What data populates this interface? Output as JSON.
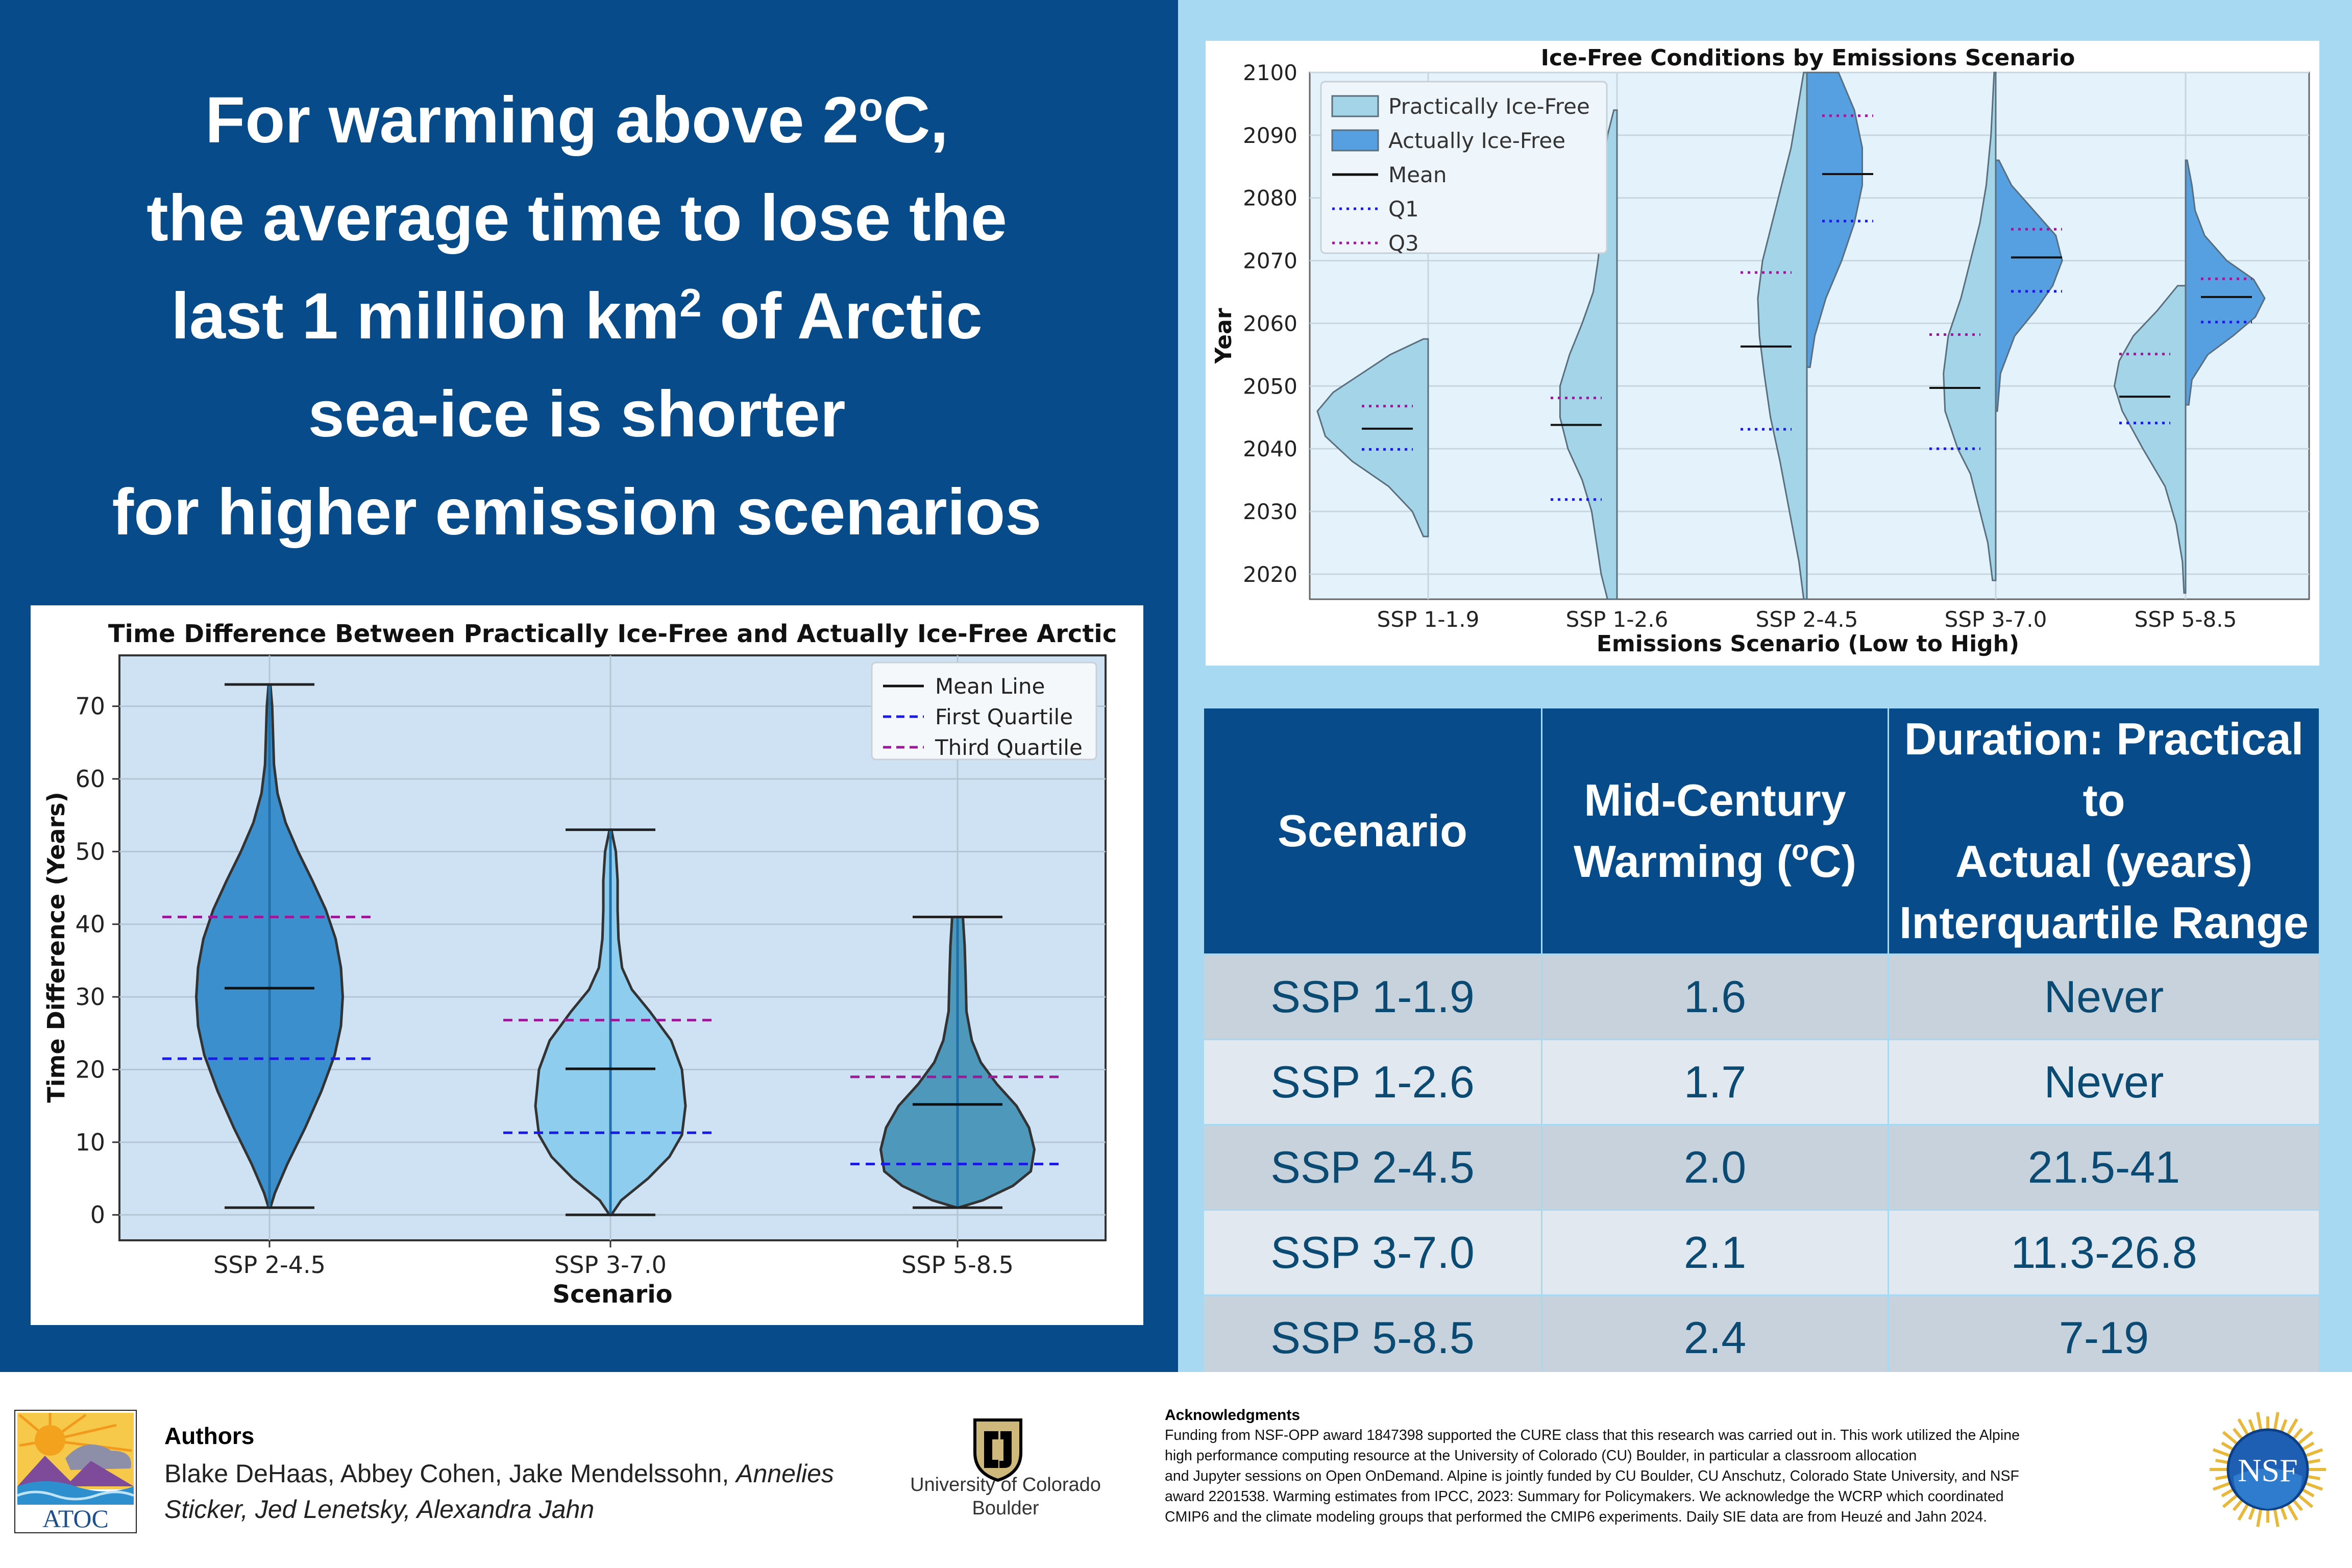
{
  "headline": {
    "line1_prefix": "For warming above 2",
    "line1_sup": "o",
    "line1_suffix": "C,",
    "line2": "the average time to lose the",
    "line3_prefix": "last 1 million km",
    "line3_sup": "2",
    "line3_suffix": " of Arctic",
    "line4": "sea-ice is shorter",
    "line5": "for higher emission scenarios"
  },
  "colors": {
    "left_panel": "#074b8a",
    "right_panel": "#a7d9f2",
    "table_header": "#074b8a",
    "table_row_dark": "#c8d2dc",
    "table_row_light": "#e1e8ef",
    "table_text": "#0b4a72"
  },
  "chart_data": [
    {
      "type": "violin",
      "title": "Time Difference Between Practically Ice-Free and Actually Ice-Free Arctic",
      "xlabel": "Scenario",
      "ylabel": "Time Difference (Years)",
      "ylim": [
        -3.5,
        77
      ],
      "yticks": [
        0,
        10,
        20,
        30,
        40,
        50,
        60,
        70
      ],
      "grid": true,
      "legend": {
        "position": "top-right",
        "entries": [
          "Mean Line",
          "First Quartile",
          "Third Quartile"
        ]
      },
      "categories": [
        "SSP 2-4.5",
        "SSP 3-7.0",
        "SSP 5-8.5"
      ],
      "series": [
        {
          "name": "SSP 2-4.5",
          "color": "#3a8fcc",
          "min": 1,
          "max": 73,
          "mean": 31.2,
          "q1": 21.5,
          "q3": 41,
          "profile": [
            [
              1,
              0.01
            ],
            [
              3,
              0.06
            ],
            [
              7,
              0.2
            ],
            [
              12,
              0.4
            ],
            [
              17,
              0.58
            ],
            [
              22,
              0.73
            ],
            [
              26,
              0.8
            ],
            [
              30,
              0.82
            ],
            [
              34,
              0.8
            ],
            [
              38,
              0.74
            ],
            [
              42,
              0.63
            ],
            [
              46,
              0.48
            ],
            [
              50,
              0.32
            ],
            [
              54,
              0.18
            ],
            [
              58,
              0.09
            ],
            [
              62,
              0.05
            ],
            [
              66,
              0.04
            ],
            [
              70,
              0.03
            ],
            [
              73,
              0.01
            ]
          ]
        },
        {
          "name": "SSP 3-7.0",
          "color": "#8fcdee",
          "min": 0,
          "max": 53,
          "mean": 20.1,
          "q1": 11.3,
          "q3": 26.8,
          "profile": [
            [
              0,
              0.01
            ],
            [
              2,
              0.12
            ],
            [
              5,
              0.42
            ],
            [
              8,
              0.66
            ],
            [
              11,
              0.8
            ],
            [
              15,
              0.84
            ],
            [
              20,
              0.8
            ],
            [
              24,
              0.68
            ],
            [
              28,
              0.44
            ],
            [
              31,
              0.24
            ],
            [
              34,
              0.13
            ],
            [
              38,
              0.09
            ],
            [
              42,
              0.08
            ],
            [
              46,
              0.08
            ],
            [
              50,
              0.06
            ],
            [
              53,
              0.01
            ]
          ]
        },
        {
          "name": "SSP 5-8.5",
          "color": "#4d98bb",
          "min": 1,
          "max": 41,
          "mean": 15.2,
          "q1": 7,
          "q3": 19,
          "profile": [
            [
              1,
              0.01
            ],
            [
              2,
              0.28
            ],
            [
              4,
              0.62
            ],
            [
              6,
              0.82
            ],
            [
              9,
              0.86
            ],
            [
              12,
              0.8
            ],
            [
              15,
              0.66
            ],
            [
              18,
              0.44
            ],
            [
              21,
              0.26
            ],
            [
              24,
              0.16
            ],
            [
              28,
              0.1
            ],
            [
              33,
              0.09
            ],
            [
              37,
              0.08
            ],
            [
              41,
              0.06
            ]
          ]
        }
      ]
    },
    {
      "type": "split-violin",
      "title": "Ice-Free Conditions by Emissions Scenario",
      "xlabel": "Emissions Scenario (Low to High)",
      "ylabel": "Year",
      "ylim": [
        2016,
        2100
      ],
      "yticks": [
        2020,
        2030,
        2040,
        2050,
        2060,
        2070,
        2080,
        2090,
        2100
      ],
      "grid": true,
      "legend": {
        "position": "top-left",
        "entries": [
          "Practically Ice-Free",
          "Actually Ice-Free",
          "Mean",
          "Q1",
          "Q3"
        ]
      },
      "categories": [
        "SSP 1-1.9",
        "SSP 1-2.6",
        "SSP 2-4.5",
        "SSP 3-7.0",
        "SSP 5-8.5"
      ],
      "series": [
        {
          "name": "Practically Ice-Free",
          "color": "#a4d4e8",
          "groups": [
            {
              "category": "SSP 1-1.9",
              "mean": 2043.2,
              "q1": 2039.9,
              "q3": 2046.8,
              "profile": [
                [
                  2026,
                  0.03
                ],
                [
                  2030,
                  0.1
                ],
                [
                  2034,
                  0.25
                ],
                [
                  2038,
                  0.48
                ],
                [
                  2042,
                  0.65
                ],
                [
                  2046,
                  0.7
                ],
                [
                  2049,
                  0.6
                ],
                [
                  2052,
                  0.42
                ],
                [
                  2055,
                  0.24
                ],
                [
                  2057.5,
                  0.03
                ]
              ]
            },
            {
              "category": "SSP 1-2.6",
              "mean": 2043.8,
              "q1": 2031.9,
              "q3": 2048.1,
              "profile": [
                [
                  2016,
                  0.06
                ],
                [
                  2020,
                  0.1
                ],
                [
                  2025,
                  0.13
                ],
                [
                  2030,
                  0.16
                ],
                [
                  2035,
                  0.22
                ],
                [
                  2040,
                  0.31
                ],
                [
                  2045,
                  0.36
                ],
                [
                  2050,
                  0.36
                ],
                [
                  2055,
                  0.3
                ],
                [
                  2060,
                  0.22
                ],
                [
                  2065,
                  0.15
                ],
                [
                  2070,
                  0.12
                ],
                [
                  2075,
                  0.1
                ],
                [
                  2080,
                  0.09
                ],
                [
                  2085,
                  0.08
                ],
                [
                  2090,
                  0.06
                ],
                [
                  2094,
                  0.02
                ]
              ]
            },
            {
              "category": "SSP 2-4.5",
              "mean": 2056.3,
              "q1": 2043.1,
              "q3": 2068.1,
              "profile": [
                [
                  2016,
                  0.02
                ],
                [
                  2022,
                  0.05
                ],
                [
                  2030,
                  0.11
                ],
                [
                  2038,
                  0.17
                ],
                [
                  2045,
                  0.23
                ],
                [
                  2052,
                  0.27
                ],
                [
                  2058,
                  0.3
                ],
                [
                  2064,
                  0.31
                ],
                [
                  2070,
                  0.28
                ],
                [
                  2076,
                  0.22
                ],
                [
                  2082,
                  0.16
                ],
                [
                  2088,
                  0.1
                ],
                [
                  2094,
                  0.06
                ],
                [
                  2100,
                  0.02
                ]
              ]
            },
            {
              "category": "SSP 3-7.0",
              "mean": 2049.7,
              "q1": 2040,
              "q3": 2058.2,
              "profile": [
                [
                  2019,
                  0.02
                ],
                [
                  2025,
                  0.05
                ],
                [
                  2030,
                  0.1
                ],
                [
                  2036,
                  0.16
                ],
                [
                  2040,
                  0.24
                ],
                [
                  2046,
                  0.32
                ],
                [
                  2052,
                  0.33
                ],
                [
                  2058,
                  0.3
                ],
                [
                  2064,
                  0.22
                ],
                [
                  2070,
                  0.16
                ],
                [
                  2076,
                  0.1
                ],
                [
                  2082,
                  0.06
                ],
                [
                  2090,
                  0.03
                ],
                [
                  2100,
                  0.01
                ]
              ]
            },
            {
              "category": "SSP 5-8.5",
              "mean": 2048.3,
              "q1": 2044.1,
              "q3": 2055.1,
              "profile": [
                [
                  2017,
                  0.01
                ],
                [
                  2022,
                  0.02
                ],
                [
                  2028,
                  0.06
                ],
                [
                  2034,
                  0.13
                ],
                [
                  2040,
                  0.27
                ],
                [
                  2046,
                  0.4
                ],
                [
                  2050,
                  0.45
                ],
                [
                  2054,
                  0.42
                ],
                [
                  2058,
                  0.33
                ],
                [
                  2062,
                  0.18
                ],
                [
                  2066,
                  0.05
                ]
              ]
            }
          ]
        },
        {
          "name": "Actually Ice-Free",
          "color": "#56a0e2",
          "groups": [
            {
              "category": "SSP 2-4.5",
              "mean": 2083.8,
              "q1": 2076.3,
              "q3": 2093.1,
              "profile": [
                [
                  2053,
                  0.02
                ],
                [
                  2058,
                  0.05
                ],
                [
                  2064,
                  0.12
                ],
                [
                  2070,
                  0.22
                ],
                [
                  2076,
                  0.3
                ],
                [
                  2082,
                  0.35
                ],
                [
                  2088,
                  0.35
                ],
                [
                  2094,
                  0.3
                ],
                [
                  2100,
                  0.2
                ]
              ]
            },
            {
              "category": "SSP 3-7.0",
              "mean": 2070.5,
              "q1": 2065.1,
              "q3": 2075,
              "profile": [
                [
                  2046,
                  0.01
                ],
                [
                  2052,
                  0.03
                ],
                [
                  2058,
                  0.12
                ],
                [
                  2062,
                  0.25
                ],
                [
                  2066,
                  0.36
                ],
                [
                  2070,
                  0.42
                ],
                [
                  2074,
                  0.38
                ],
                [
                  2078,
                  0.24
                ],
                [
                  2082,
                  0.1
                ],
                [
                  2086,
                  0.02
                ]
              ]
            },
            {
              "category": "SSP 5-8.5",
              "mean": 2064.2,
              "q1": 2060.2,
              "q3": 2067.1,
              "profile": [
                [
                  2047,
                  0.02
                ],
                [
                  2051,
                  0.04
                ],
                [
                  2055,
                  0.14
                ],
                [
                  2058,
                  0.3
                ],
                [
                  2061,
                  0.44
                ],
                [
                  2064,
                  0.5
                ],
                [
                  2067,
                  0.43
                ],
                [
                  2070,
                  0.26
                ],
                [
                  2074,
                  0.12
                ],
                [
                  2078,
                  0.06
                ],
                [
                  2082,
                  0.04
                ],
                [
                  2086,
                  0.01
                ]
              ]
            }
          ]
        }
      ]
    }
  ],
  "table": {
    "headers": {
      "col1": "Scenario",
      "col2_line1": "Mid-Century",
      "col2_line2_prefix": "Warming (",
      "col2_line2_sup": "o",
      "col2_line2_suffix": "C)",
      "col3_line1": "Duration: Practical to",
      "col3_line2": "Actual (years)",
      "col3_line3": "Interquartile Range"
    },
    "rows": [
      {
        "scenario": "SSP 1-1.9",
        "warming": "1.6",
        "duration": "Never"
      },
      {
        "scenario": "SSP 1-2.6",
        "warming": "1.7",
        "duration": "Never"
      },
      {
        "scenario": "SSP 2-4.5",
        "warming": "2.0",
        "duration": "21.5-41"
      },
      {
        "scenario": "SSP 3-7.0",
        "warming": "2.1",
        "duration": "11.3-26.8"
      },
      {
        "scenario": "SSP 5-8.5",
        "warming": "2.4",
        "duration": "7-19"
      }
    ]
  },
  "footer": {
    "atoc_logo_text": "ATOC",
    "authors_title": "Authors",
    "authors_line1_regular": "Blake DeHaas, Abbey Cohen, Jake Mendelssohn, ",
    "authors_line1_italic": "Annelies",
    "authors_line2_italic": "Sticker, Jed Lenetsky, Alexandra Jahn",
    "cu_line1": "University of Colorado",
    "cu_line2": "Boulder",
    "ack_title": "Acknowledgments",
    "ack_lines": [
      "Funding from NSF-OPP award 1847398 supported the CURE class that this research was carried out in. This work utilized the Alpine",
      "high performance computing resource at the University of Colorado (CU) Boulder, in particular a classroom allocation",
      "and Jupyter sessions on Open OnDemand.  Alpine is jointly funded by CU Boulder, CU Anschutz, Colorado State University, and NSF",
      "award 2201538. Warming estimates from IPCC, 2023: Summary for Policymakers. We acknowledge the WCRP which coordinated",
      "CMIP6 and the climate modeling groups that performed the CMIP6 experiments. Daily SIE data are from Heuzé and Jahn 2024."
    ],
    "nsf_logo_text": "NSF"
  }
}
